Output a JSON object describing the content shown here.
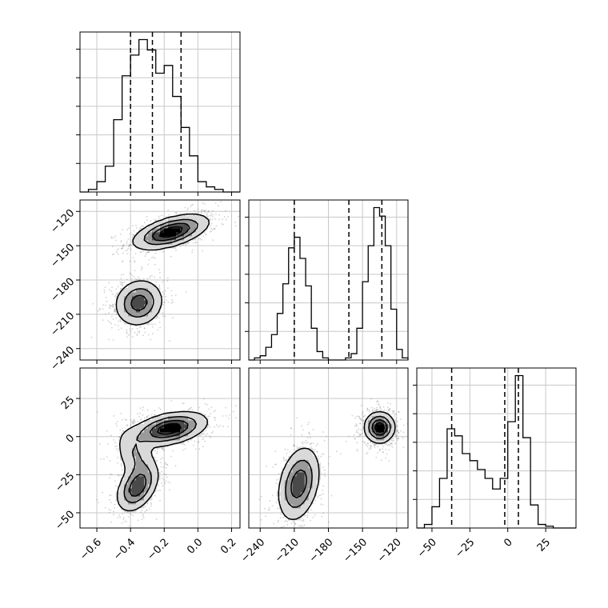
{
  "figure": {
    "type": "corner-plot",
    "panel_count": 6
  },
  "colors": {
    "frame": "#000000",
    "grid": "#c8c8c8",
    "scatter": "#7f7f7f",
    "density_dark": "#000000",
    "background": "#ffffff"
  },
  "chart_data": [
    {
      "id": "hist-p1",
      "type": "histogram",
      "xlim": [
        -0.7,
        0.25
      ],
      "bin_edges": [
        -0.7,
        -0.65,
        -0.6,
        -0.55,
        -0.5,
        -0.45,
        -0.4,
        -0.35,
        -0.3,
        -0.25,
        -0.2,
        -0.15,
        -0.1,
        -0.05,
        0.0,
        0.05,
        0.1,
        0.15,
        0.2,
        0.25
      ],
      "counts": [
        0,
        1,
        4,
        10,
        28,
        45,
        53,
        59,
        55,
        46,
        49,
        37,
        25,
        14,
        4,
        2,
        1,
        0,
        0
      ],
      "quantiles": [
        -0.4,
        -0.27,
        -0.1
      ],
      "grid": true
    },
    {
      "id": "hist-p2",
      "type": "histogram",
      "xlim": [
        -250,
        -110
      ],
      "bin_edges": [
        -250,
        -245,
        -240,
        -235,
        -230,
        -225,
        -220,
        -215,
        -210,
        -205,
        -200,
        -195,
        -190,
        -185,
        -180,
        -175,
        -170,
        -165,
        -160,
        -155,
        -150,
        -145,
        -140,
        -135,
        -130,
        -125,
        -120,
        -115,
        -110
      ],
      "counts": [
        0,
        1,
        2,
        6,
        12,
        22,
        36,
        53,
        58,
        48,
        35,
        15,
        4,
        1,
        0,
        0,
        0,
        1,
        3,
        15,
        37,
        54,
        72,
        68,
        54,
        24,
        5,
        1
      ],
      "quantiles": [
        -210,
        -162,
        -133
      ],
      "grid": true
    },
    {
      "id": "hist-p3",
      "type": "histogram",
      "xlim": [
        -60,
        45
      ],
      "bin_edges": [
        -60,
        -55,
        -50,
        -45,
        -40,
        -35,
        -30,
        -25,
        -20,
        -15,
        -10,
        -5,
        0,
        5,
        10,
        15,
        20,
        25,
        30,
        35,
        40,
        45
      ],
      "counts": [
        0,
        2,
        12,
        28,
        56,
        52,
        42,
        38,
        33,
        28,
        22,
        28,
        60,
        86,
        51,
        13,
        2,
        1,
        0,
        0,
        0
      ],
      "quantiles": [
        -37,
        -2,
        7
      ],
      "grid": true
    },
    {
      "id": "density-p2-vs-p1",
      "type": "contour",
      "xlim": [
        -0.7,
        0.25
      ],
      "ylim": [
        -250,
        -110
      ],
      "blobs": [
        {
          "cx": -0.16,
          "cy": -138,
          "sx": 0.11,
          "sy": 7.5,
          "rho": 0.55,
          "w": 1.0
        },
        {
          "cx": -0.35,
          "cy": -200,
          "sx": 0.07,
          "sy": 10.0,
          "rho": 0.1,
          "w": 0.75
        }
      ],
      "grid": true
    },
    {
      "id": "density-p3-vs-p1",
      "type": "contour",
      "xlim": [
        -0.7,
        0.25
      ],
      "ylim": [
        -60,
        45
      ],
      "blobs": [
        {
          "cx": -0.17,
          "cy": 5,
          "sx": 0.11,
          "sy": 5.5,
          "rho": 0.4,
          "w": 1.0
        },
        {
          "cx": -0.36,
          "cy": -33,
          "sx": 0.06,
          "sy": 8.0,
          "rho": 0.4,
          "w": 0.8
        },
        {
          "cx": -0.37,
          "cy": -12,
          "sx": 0.06,
          "sy": 9.0,
          "rho": -0.3,
          "w": 0.35
        }
      ],
      "grid": true
    },
    {
      "id": "density-p3-vs-p2",
      "type": "contour",
      "xlim": [
        -250,
        -110
      ],
      "ylim": [
        -60,
        45
      ],
      "blobs": [
        {
          "cx": -135,
          "cy": 6,
          "sx": 6.5,
          "sy": 5.0,
          "rho": 0.0,
          "w": 1.0
        },
        {
          "cx": -206,
          "cy": -31,
          "sx": 9.0,
          "sy": 12.0,
          "rho": 0.3,
          "w": 0.8
        }
      ],
      "grid": true
    }
  ],
  "axes": {
    "p1_ticks": [
      "−0.6",
      "−0.4",
      "−0.2",
      "0.0",
      "0.2"
    ],
    "p1_tick_values": [
      -0.6,
      -0.4,
      -0.2,
      0.0,
      0.2
    ],
    "p2_ticks": [
      "−240",
      "−210",
      "−180",
      "−150",
      "−120"
    ],
    "p2_tick_values": [
      -240,
      -210,
      -180,
      -150,
      -120
    ],
    "p2_y_ticks": [
      "−120",
      "−150",
      "−180",
      "−210",
      "−240"
    ],
    "p2_y_tick_values": [
      -120,
      -150,
      -180,
      -210,
      -240
    ],
    "p3_ticks": [
      "−50",
      "−25",
      "0",
      "25"
    ],
    "p3_tick_values": [
      -50,
      -25,
      0,
      25
    ],
    "p3_y_ticks": [
      "25",
      "0",
      "−25",
      "−50"
    ],
    "p3_y_tick_values": [
      25,
      0,
      -25,
      -50
    ]
  }
}
